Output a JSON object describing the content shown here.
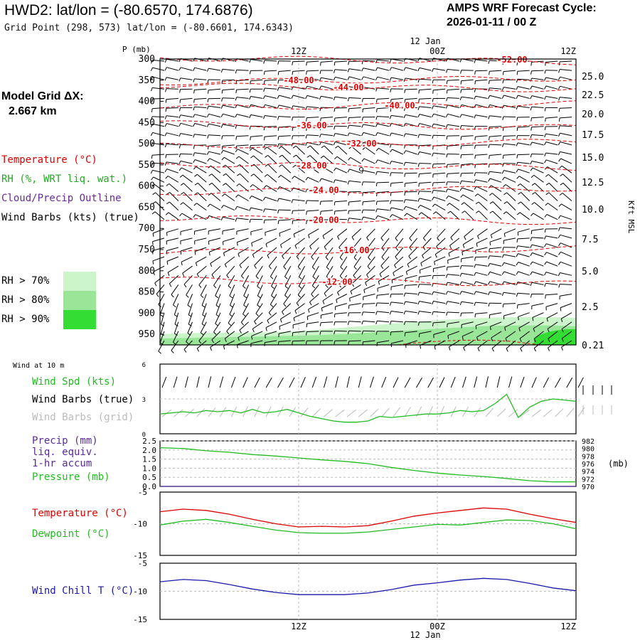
{
  "header": {
    "station_title": "HWD2:  lat/lon = (-80.6570, 174.6876)",
    "grid_point": "Grid Point (298, 573) lat/lon = (-80.6601, 174.6343)",
    "cycle_label": "AMPS WRF Forecast Cycle:",
    "cycle_value": "2026-01-11 / 00  Z",
    "model_grid_label": "Model Grid ΔX:",
    "model_grid_value": "2.667 km"
  },
  "colors": {
    "temperature": "#dd0000",
    "rh": "#22aa22",
    "cloud": "#6a2a9a",
    "barb": "#000000",
    "barb_grid": "#bbbbbb",
    "precip": "#5a2a9a",
    "pressure": "#22bb22",
    "dewpoint": "#22bb22",
    "windchill": "#1a1aaa",
    "rh70": "#ccf5cc",
    "rh80": "#99e699",
    "rh90": "#33dd33"
  },
  "legend_upper": {
    "temperature": "Temperature (°C)",
    "rh": "RH (%, WRT liq. wat.)",
    "cloud": "Cloud/Precip Outline",
    "wind": "Wind Barbs (kts) (true)"
  },
  "rh_legend": [
    {
      "label": "RH > 70%"
    },
    {
      "label": "RH > 80%"
    },
    {
      "label": "RH > 90%"
    }
  ],
  "time_axis": {
    "top_date": "12 Jan",
    "bottom_date": "12 Jan",
    "labels": [
      "12Z",
      "00Z",
      "12Z"
    ]
  },
  "chart_data": [
    {
      "type": "line",
      "panel": "upper-air time-height cross section",
      "ylabel": "P (mb)",
      "y_ticks": [
        "300",
        "350",
        "400",
        "450",
        "500",
        "550",
        "600",
        "650",
        "700",
        "750",
        "800",
        "850",
        "900",
        "950"
      ],
      "y_axis_range_mb": [
        300,
        975
      ],
      "right_axis_label": "Kft MSL",
      "right_ticks": [
        "25.0",
        "22.5",
        "20.0",
        "17.5",
        "15.0",
        "12.5",
        "10.0",
        "7.5",
        "5.0",
        "2.5",
        "0.21"
      ],
      "forecast_hours": [
        0,
        36
      ],
      "isotherms": [
        {
          "label": "-52.00",
          "p_at_label": 302
        },
        {
          "label": "-48.00",
          "p_at_label": 350
        },
        {
          "label": "-44.00",
          "p_at_label": 367
        },
        {
          "label": "-40.00",
          "p_at_label": 410
        },
        {
          "label": "-36.00",
          "p_at_label": 457
        },
        {
          "label": "-32.00",
          "p_at_label": 500
        },
        {
          "label": "-28.00",
          "p_at_label": 552
        },
        {
          "label": "-24.00",
          "p_at_label": 610
        },
        {
          "label": "-20.00",
          "p_at_label": 680
        },
        {
          "label": "-16.00",
          "p_at_label": 752
        },
        {
          "label": "-12.00",
          "p_at_label": 826
        }
      ]
    },
    {
      "type": "line",
      "panel": "10 m wind",
      "panel_label": "Wind at 10 m",
      "legend": [
        "Wind Spd (kts)",
        "Wind Barbs (true)",
        "Wind Barbs (grid)"
      ],
      "y_ticks": [
        "6",
        "3",
        "0"
      ],
      "ylim": [
        0,
        6
      ],
      "series": [
        {
          "name": "Wind Spd (kts)",
          "x": [
            0,
            1,
            2,
            3,
            4,
            5,
            6,
            7,
            8,
            9,
            10,
            11,
            12,
            13,
            14,
            15,
            16,
            17,
            18,
            19,
            20,
            21,
            22,
            23,
            24,
            25,
            26,
            27,
            28,
            29,
            30,
            31,
            32,
            33,
            34,
            35,
            36
          ],
          "values": [
            1.7,
            1.8,
            1.9,
            1.8,
            2.0,
            1.9,
            2.0,
            1.8,
            2.1,
            1.8,
            1.9,
            2.1,
            1.8,
            1.5,
            1.3,
            1.1,
            1.0,
            1.0,
            1.1,
            1.5,
            1.4,
            1.5,
            1.6,
            1.7,
            1.7,
            1.8,
            2.0,
            1.9,
            2.0,
            2.6,
            3.4,
            1.4,
            2.3,
            2.8,
            3.0,
            2.9,
            2.8
          ]
        }
      ]
    },
    {
      "type": "line",
      "panel": "precip and pressure",
      "legend": [
        "Precip (mm)",
        "liq. equiv.",
        "1-hr accum",
        "Pressure (mb)"
      ],
      "y_ticks_left": [
        "2.5",
        "2.0",
        "1.5",
        "1.0",
        "0.5",
        "0.0"
      ],
      "y_ticks_right": [
        "982",
        "980",
        "978",
        "976",
        "974",
        "972",
        "970"
      ],
      "right_unit": "(mb)",
      "ylim_left": [
        0,
        2.5
      ],
      "ylim_right": [
        970,
        982
      ],
      "series": [
        {
          "name": "Pressure (mb)",
          "x": [
            0,
            2,
            4,
            6,
            8,
            10,
            12,
            14,
            16,
            18,
            20,
            22,
            24,
            26,
            28,
            30,
            32,
            34,
            36
          ],
          "values": [
            980.2,
            980.0,
            979.4,
            979.0,
            978.4,
            978.0,
            977.5,
            977.0,
            976.6,
            976.0,
            975.0,
            974.2,
            973.5,
            973.0,
            972.6,
            972.1,
            971.5,
            971.2,
            971.2
          ]
        },
        {
          "name": "Precip (mm)",
          "x": [
            0,
            36
          ],
          "values": [
            0.0,
            0.0
          ]
        }
      ]
    },
    {
      "type": "line",
      "panel": "temperature and dewpoint",
      "legend": [
        "Temperature (°C)",
        "Dewpoint (°C)"
      ],
      "y_ticks": [
        "-5",
        "-10",
        "-15"
      ],
      "ylim": [
        -15,
        -5
      ],
      "series": [
        {
          "name": "Temperature (°C)",
          "x": [
            0,
            2,
            4,
            6,
            8,
            10,
            12,
            14,
            16,
            18,
            20,
            22,
            24,
            26,
            28,
            30,
            32,
            34,
            36
          ],
          "values": [
            -8.1,
            -7.7,
            -7.9,
            -8.5,
            -9.3,
            -10.0,
            -10.5,
            -10.4,
            -10.5,
            -10.3,
            -9.6,
            -8.8,
            -8.3,
            -7.9,
            -7.5,
            -7.7,
            -8.5,
            -9.2,
            -9.8
          ]
        },
        {
          "name": "Dewpoint (°C)",
          "x": [
            0,
            2,
            4,
            6,
            8,
            10,
            12,
            14,
            16,
            18,
            20,
            22,
            24,
            26,
            28,
            30,
            32,
            34,
            36
          ],
          "values": [
            -10.2,
            -9.6,
            -9.3,
            -9.8,
            -10.4,
            -11.0,
            -11.4,
            -11.5,
            -11.5,
            -11.3,
            -10.9,
            -10.5,
            -10.1,
            -10.2,
            -9.8,
            -9.4,
            -9.5,
            -10.0,
            -10.8
          ]
        }
      ]
    },
    {
      "type": "line",
      "panel": "wind chill",
      "legend": [
        "Wind Chill T (°C)"
      ],
      "y_ticks": [
        "-5",
        "-10",
        "-15"
      ],
      "ylim": [
        -15,
        -5
      ],
      "series": [
        {
          "name": "Wind Chill T (°C)",
          "x": [
            0,
            2,
            4,
            6,
            8,
            10,
            12,
            14,
            16,
            18,
            20,
            22,
            24,
            26,
            28,
            30,
            32,
            34,
            36
          ],
          "values": [
            -8.3,
            -7.9,
            -8.1,
            -8.8,
            -9.6,
            -10.2,
            -10.6,
            -10.6,
            -10.6,
            -10.3,
            -9.7,
            -8.9,
            -8.5,
            -8.0,
            -7.7,
            -7.9,
            -8.6,
            -9.4,
            -9.9
          ]
        }
      ]
    }
  ]
}
